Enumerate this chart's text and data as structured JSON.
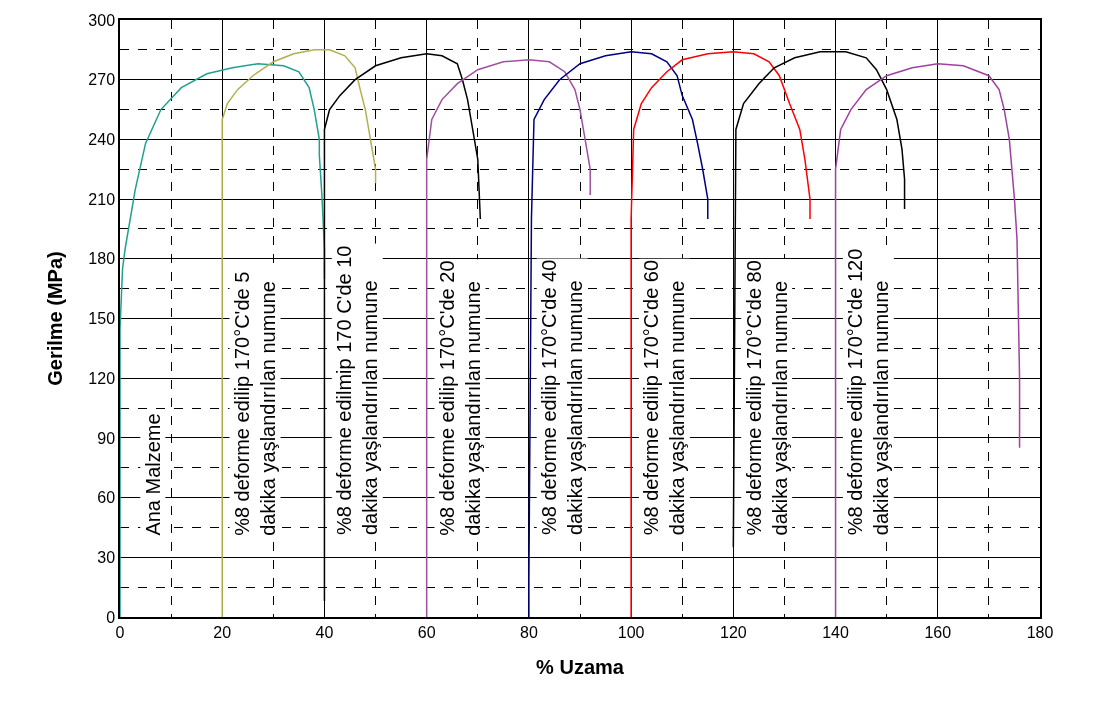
{
  "chart_data": {
    "type": "line",
    "xlabel": "% Uzama",
    "ylabel": "Gerilme (MPa)",
    "xlim": [
      0,
      180
    ],
    "xticks": [
      0,
      20,
      40,
      60,
      80,
      100,
      120,
      140,
      160,
      180
    ],
    "ylim": [
      0,
      300
    ],
    "yticks": [
      0,
      30,
      60,
      90,
      120,
      150,
      180,
      210,
      240,
      270,
      300
    ],
    "grid": true,
    "legend": false,
    "marker": "none",
    "line_style": "solid",
    "series": [
      {
        "name": "Ana Malzeme",
        "color": "#20a090",
        "x": [
          0,
          0,
          0.5,
          1,
          3,
          5,
          8,
          12,
          17,
          22,
          27,
          32,
          35,
          37,
          38,
          39,
          39,
          39.5,
          40,
          40
        ],
        "values": [
          0,
          145,
          175,
          185,
          215,
          238,
          255,
          266,
          273,
          276,
          278,
          277,
          274,
          266,
          255,
          240,
          232,
          212,
          185,
          170
        ]
      },
      {
        "name": "%8 deforme edilip 170°C'de 5\ndakika yaşlandırılan numune",
        "color": "#b0b050",
        "x": [
          20,
          20,
          21,
          23,
          26,
          30,
          34,
          38,
          41,
          44,
          46,
          47,
          48,
          49,
          50,
          50
        ],
        "values": [
          0,
          250,
          258,
          265,
          272,
          279,
          283,
          285,
          285,
          282,
          276,
          265,
          255,
          240,
          225,
          218
        ]
      },
      {
        "name": "%8 deforme edilmip 170 C'de 10\ndakika yaşlandırılan numune",
        "color": "#000000",
        "x": [
          40,
          40,
          41,
          43,
          46,
          50,
          55,
          60,
          63,
          66,
          67,
          68,
          69,
          70,
          70.5
        ],
        "values": [
          8,
          245,
          255,
          262,
          270,
          277,
          281,
          283,
          282,
          278,
          270,
          260,
          245,
          230,
          200
        ]
      },
      {
        "name": "%8 deforme edilip 170°C'de 20\ndakika yaşlandırılan numune",
        "color": "#a050a0",
        "x": [
          60,
          60,
          61,
          63,
          66,
          70,
          75,
          80,
          84,
          87,
          89,
          90,
          91,
          92,
          92
        ],
        "values": [
          0,
          230,
          250,
          260,
          268,
          275,
          279,
          280,
          279,
          274,
          265,
          255,
          240,
          225,
          212
        ]
      },
      {
        "name": "%8 deforme edilip 170°C'de 40\ndakika yaşlandırılan numune",
        "color": "#000080",
        "x": [
          80,
          80,
          80.5,
          81,
          83,
          86,
          90,
          95,
          100,
          104,
          107,
          109,
          110,
          112,
          113,
          114,
          115,
          115
        ],
        "values": [
          0,
          20,
          200,
          250,
          260,
          270,
          278,
          282,
          284,
          283,
          279,
          272,
          262,
          250,
          238,
          225,
          210,
          200
        ]
      },
      {
        "name": "%8 deforme edilip 170°C'de 60\ndakika yaşlandırılan numune",
        "color": "#ff0000",
        "x": [
          100,
          100,
          100.5,
          102,
          104,
          107,
          110,
          115,
          120,
          124,
          127,
          129,
          131,
          133,
          134,
          135,
          135
        ],
        "values": [
          0,
          200,
          245,
          258,
          266,
          274,
          280,
          283,
          284,
          283,
          279,
          272,
          258,
          245,
          230,
          210,
          200
        ]
      },
      {
        "name": "%8 deforme edilip 170°C'de 80\ndakika yaşlandırılan numune",
        "color": "#000000",
        "x": [
          120,
          120.5,
          122,
          125,
          128,
          132,
          137,
          142,
          146,
          148,
          150,
          152,
          153,
          153.5,
          153.5
        ],
        "values": [
          35,
          245,
          258,
          268,
          276,
          281,
          284,
          284,
          281,
          275,
          265,
          250,
          235,
          220,
          205
        ]
      },
      {
        "name": "%8 deforme edilip 170°C'de 120\ndakika yaşlandırılan numune",
        "color": "#a040a0",
        "x": [
          140,
          140,
          140,
          141,
          143,
          146,
          150,
          155,
          160,
          165,
          170,
          172,
          173,
          174,
          175,
          175.5,
          176,
          176
        ],
        "values": [
          0,
          120,
          225,
          245,
          255,
          265,
          272,
          276,
          278,
          277,
          272,
          265,
          255,
          240,
          210,
          190,
          120,
          85
        ]
      }
    ]
  }
}
